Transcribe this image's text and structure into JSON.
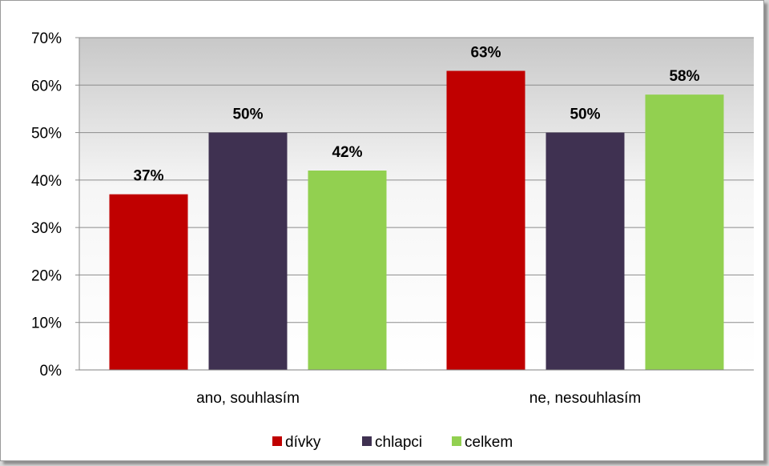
{
  "chart_data": {
    "type": "bar",
    "title": "",
    "xlabel": "",
    "ylabel": "",
    "categories": [
      "ano, souhlasím",
      "ne, nesouhlasím"
    ],
    "series": [
      {
        "name": "dívky",
        "values": [
          37,
          63
        ],
        "labels": [
          "37%",
          "63%"
        ],
        "color": "#c00000"
      },
      {
        "name": "chlapci",
        "values": [
          50,
          50
        ],
        "labels": [
          "50%",
          "50%"
        ],
        "color": "#3f3151"
      },
      {
        "name": "celkem",
        "values": [
          42,
          58
        ],
        "labels": [
          "42%",
          "58%"
        ],
        "color": "#92d050"
      }
    ],
    "ylim": [
      0,
      70
    ],
    "yticks": [
      0,
      10,
      20,
      30,
      40,
      50,
      60,
      70
    ],
    "ytick_labels": [
      "0%",
      "10%",
      "20%",
      "30%",
      "40%",
      "50%",
      "60%",
      "70%"
    ],
    "grid": true,
    "legend_position": "bottom"
  }
}
